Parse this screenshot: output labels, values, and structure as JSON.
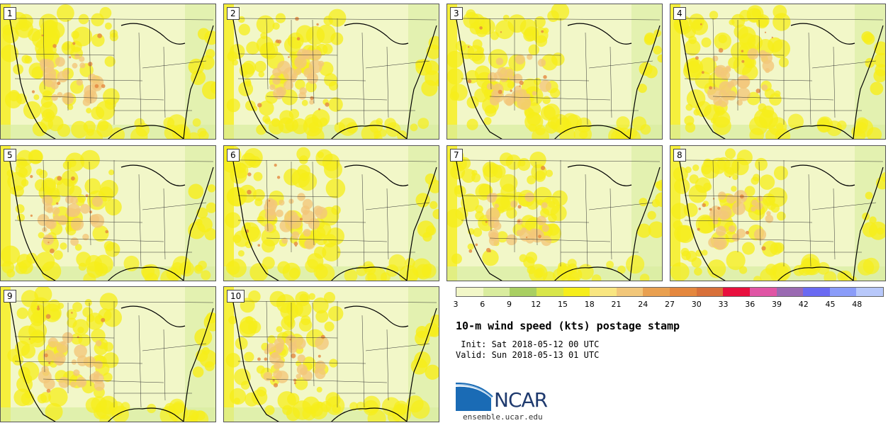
{
  "stamps": [
    {
      "label": "1"
    },
    {
      "label": "2"
    },
    {
      "label": "3"
    },
    {
      "label": "4"
    },
    {
      "label": "5"
    },
    {
      "label": "6"
    },
    {
      "label": "7"
    },
    {
      "label": "8"
    },
    {
      "label": "9"
    },
    {
      "label": "10"
    }
  ],
  "legend": {
    "ticks": [
      "3",
      "6",
      "9",
      "12",
      "15",
      "18",
      "21",
      "24",
      "27",
      "30",
      "33",
      "36",
      "39",
      "42",
      "45",
      "48"
    ],
    "colors": [
      "#f2f7c8",
      "#d9ec9e",
      "#a9cf62",
      "#d8e64a",
      "#f6ee1a",
      "#f9e681",
      "#f2c77a",
      "#e9a050",
      "#e4873e",
      "#d8703a",
      "#e8103e",
      "#e055a5",
      "#9a6ab2",
      "#6a6af2",
      "#8a9cf8",
      "#b8c8fa"
    ]
  },
  "title": "10-m wind speed (kts) postage stamp",
  "init": " Init: Sat 2018-05-12 00 UTC",
  "valid": "Valid: Sun 2018-05-13 01 UTC",
  "logo": {
    "text": "NCAR",
    "colors": {
      "blue": "#1a6bb5",
      "navy": "#1f3a6e"
    }
  },
  "site": "ensemble.ucar.edu",
  "map_colors": {
    "ocean": "#d8eca0",
    "land": "#f2f7c8",
    "windy": "#f6ee1a",
    "strong": "#f2c77a",
    "gust": "#e4873e"
  }
}
